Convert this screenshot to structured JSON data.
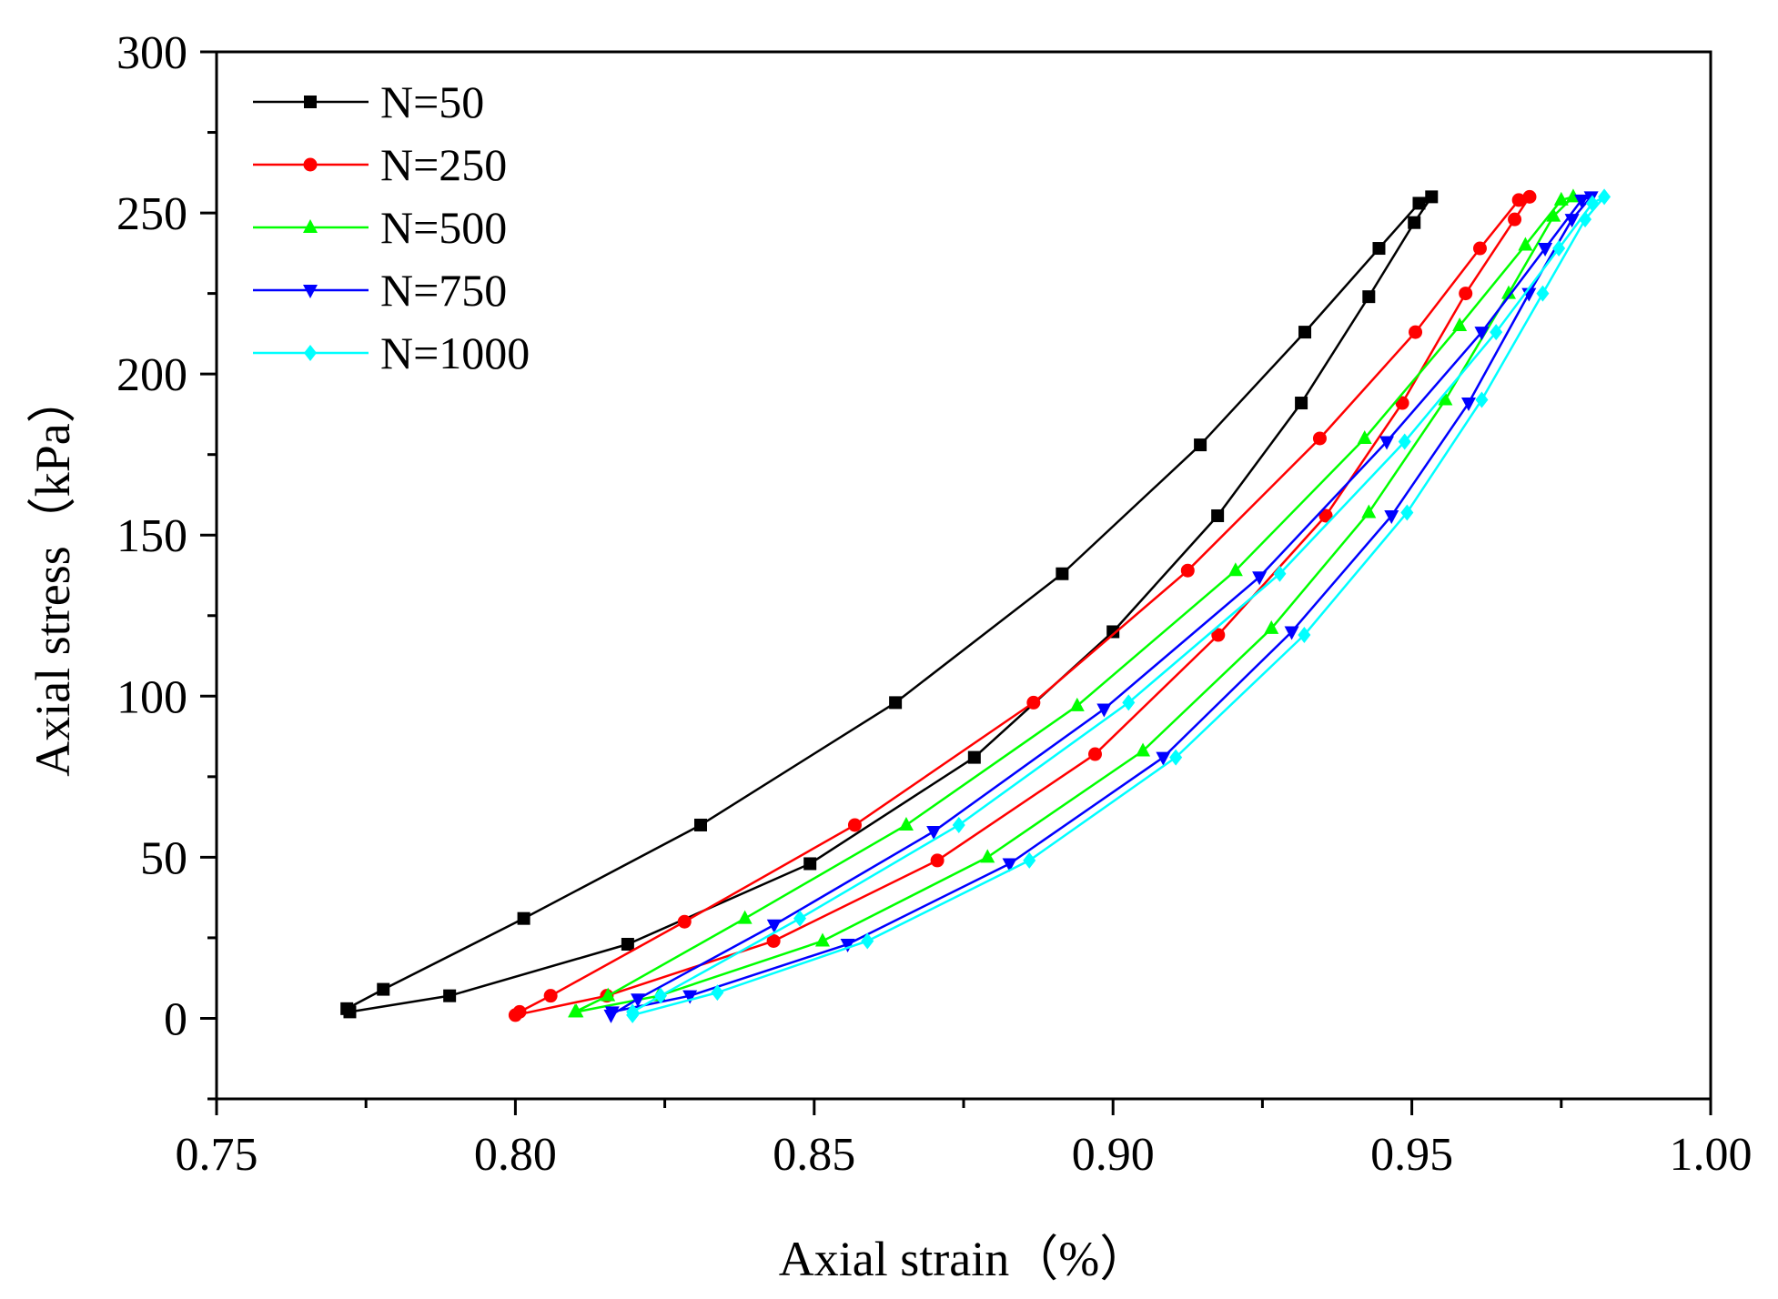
{
  "chart_data": {
    "type": "line",
    "title": "",
    "xlabel": "Axial strain（%）",
    "ylabel": "Axial stress（kPa）",
    "xlim": [
      0.75,
      1.0
    ],
    "ylim": [
      -25,
      300
    ],
    "xticks": [
      "0.75",
      "0.80",
      "0.85",
      "0.90",
      "0.95",
      "1.00"
    ],
    "yticks": [
      "0",
      "50",
      "100",
      "150",
      "200",
      "250",
      "300"
    ],
    "grid": false,
    "legend_position": "top-left",
    "series": [
      {
        "name": "N=50",
        "color": "#000000",
        "marker": "square",
        "x": [
          0.7718,
          0.7779,
          0.8014,
          0.831,
          0.8636,
          0.8915,
          0.9146,
          0.9321,
          0.9445,
          0.9512,
          0.9533,
          0.9504,
          0.9428,
          0.9315,
          0.9175,
          0.9,
          0.8768,
          0.8493,
          0.8188,
          0.789,
          0.7723
        ],
        "y": [
          3,
          9,
          31,
          60,
          98,
          138,
          178,
          213,
          239,
          253,
          255,
          247,
          224,
          191,
          156,
          120,
          81,
          48,
          23,
          7,
          2
        ]
      },
      {
        "name": "N=250",
        "color": "#ff0000",
        "marker": "circle",
        "x": [
          0.8007,
          0.8059,
          0.8283,
          0.8568,
          0.8867,
          0.9125,
          0.9346,
          0.9506,
          0.9614,
          0.9679,
          0.9697,
          0.9672,
          0.959,
          0.9484,
          0.9356,
          0.9176,
          0.897,
          0.8706,
          0.8432,
          0.8153,
          0.8
        ],
        "y": [
          2,
          7,
          30,
          60,
          98,
          139,
          180,
          213,
          239,
          254,
          255,
          248,
          225,
          191,
          156,
          119,
          82,
          49,
          24,
          7,
          1
        ]
      },
      {
        "name": "N=500",
        "color": "#00ff00",
        "marker": "triangle-up",
        "x": [
          0.81,
          0.8155,
          0.8384,
          0.8654,
          0.894,
          0.9205,
          0.9421,
          0.958,
          0.969,
          0.975,
          0.977,
          0.9737,
          0.9662,
          0.9556,
          0.9428,
          0.9265,
          0.905,
          0.879,
          0.8514,
          0.824,
          0.8102
        ],
        "y": [
          2,
          7,
          31,
          60,
          97,
          139,
          180,
          215,
          240,
          254,
          255,
          249,
          225,
          192,
          157,
          121,
          83,
          50,
          24,
          7,
          2
        ]
      },
      {
        "name": "N=750",
        "color": "#0000ff",
        "marker": "triangle-down",
        "x": [
          0.816,
          0.8205,
          0.8433,
          0.87,
          0.8985,
          0.9245,
          0.9458,
          0.9617,
          0.9723,
          0.9784,
          0.98,
          0.9768,
          0.9696,
          0.9595,
          0.9466,
          0.9299,
          0.9084,
          0.8827,
          0.8556,
          0.8292,
          0.8162
        ],
        "y": [
          1,
          6,
          29,
          58,
          96,
          137,
          179,
          213,
          239,
          254,
          255,
          248,
          225,
          191,
          156,
          120,
          81,
          48,
          23,
          7,
          2
        ]
      },
      {
        "name": "N=1000",
        "color": "#00ffff",
        "marker": "diamond",
        "x": [
          0.8196,
          0.8243,
          0.8476,
          0.8742,
          0.9026,
          0.9279,
          0.9488,
          0.9641,
          0.9746,
          0.9802,
          0.9822,
          0.979,
          0.9719,
          0.9617,
          0.9492,
          0.932,
          0.9105,
          0.886,
          0.8589,
          0.8338,
          0.8196
        ],
        "y": [
          2,
          7,
          31,
          60,
          98,
          138,
          179,
          213,
          239,
          253,
          255,
          248,
          225,
          192,
          157,
          119,
          81,
          49,
          24,
          8,
          1
        ]
      }
    ]
  }
}
